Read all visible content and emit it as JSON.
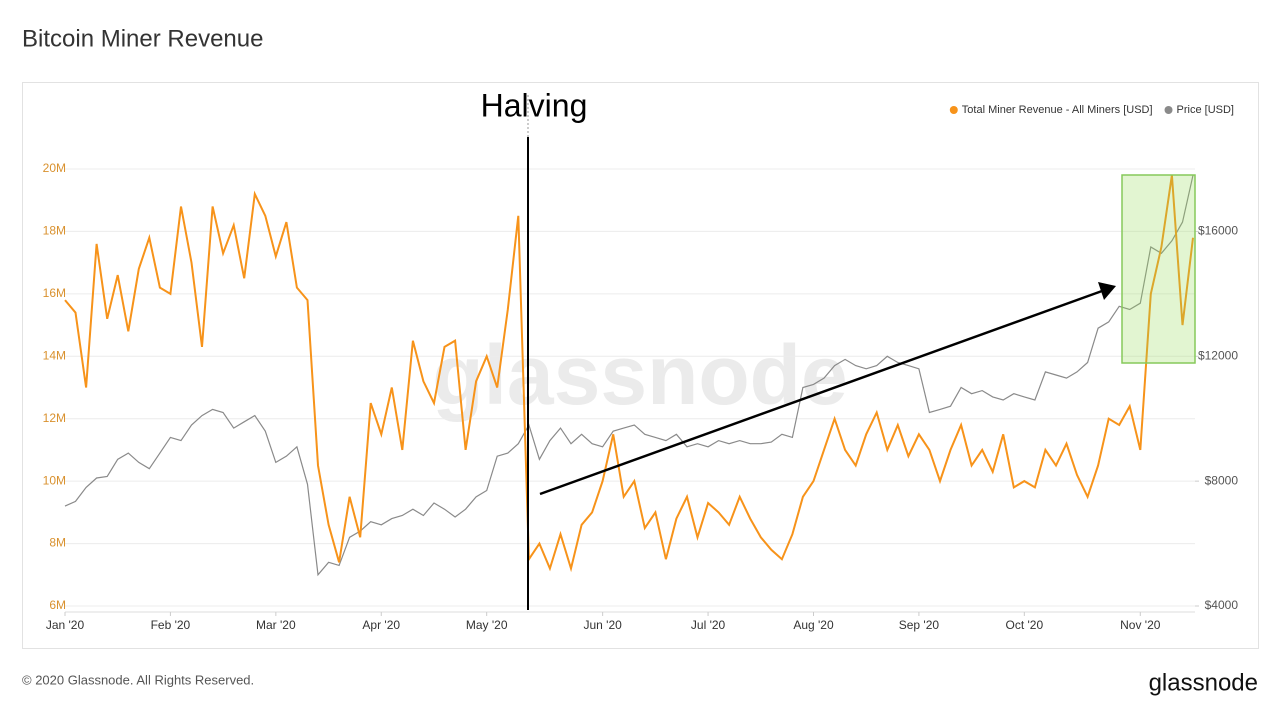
{
  "chart_data": {
    "type": "line",
    "title": "Bitcoin Miner Revenue",
    "annotation": "Halving",
    "watermark": "glassnode",
    "footer": "© 2020 Glassnode. All Rights Reserved.",
    "logo": "glassnode",
    "categories": [
      "Jan '20",
      null,
      null,
      null,
      null,
      null,
      null,
      null,
      null,
      null,
      "Feb '20",
      null,
      null,
      null,
      null,
      null,
      null,
      null,
      null,
      null,
      "Mar '20",
      null,
      null,
      null,
      null,
      null,
      null,
      null,
      null,
      null,
      "Apr '20",
      null,
      null,
      null,
      null,
      null,
      null,
      null,
      null,
      null,
      "May '20",
      null,
      null,
      null,
      null,
      null,
      null,
      null,
      null,
      null,
      null,
      "Jun '20",
      null,
      null,
      null,
      null,
      null,
      null,
      null,
      null,
      null,
      "Jul '20",
      null,
      null,
      null,
      null,
      null,
      null,
      null,
      null,
      null,
      "Aug '20",
      null,
      null,
      null,
      null,
      null,
      null,
      null,
      null,
      null,
      "Sep '20",
      null,
      null,
      null,
      null,
      null,
      null,
      null,
      null,
      null,
      "Oct '20",
      null,
      null,
      null,
      null,
      null,
      null,
      null,
      null,
      null,
      null,
      "Nov '20",
      null,
      null,
      null,
      null,
      null
    ],
    "series": [
      {
        "name": "Total Miner Revenue - All Miners [USD]",
        "color": "#f7931a",
        "values": [
          15.8,
          15.4,
          13.0,
          17.6,
          15.2,
          16.6,
          14.8,
          16.8,
          17.8,
          16.2,
          16.0,
          18.8,
          17.0,
          14.3,
          18.8,
          17.3,
          18.2,
          16.5,
          19.2,
          18.5,
          17.2,
          18.3,
          16.2,
          15.8,
          10.5,
          8.6,
          7.4,
          9.5,
          8.2,
          12.5,
          11.5,
          13.0,
          11.0,
          14.5,
          13.2,
          12.5,
          14.3,
          14.5,
          11.0,
          13.2,
          14.0,
          13.0,
          15.5,
          18.5,
          7.5,
          8.0,
          7.2,
          8.3,
          7.2,
          8.6,
          9.0,
          10.0,
          11.5,
          9.5,
          10.0,
          8.5,
          9.0,
          7.5,
          8.8,
          9.5,
          8.2,
          9.3,
          9.0,
          8.6,
          9.5,
          8.8,
          8.2,
          7.8,
          7.5,
          8.3,
          9.5,
          10.0,
          11.0,
          12.0,
          11.0,
          10.5,
          11.5,
          12.2,
          11.0,
          11.8,
          10.8,
          11.5,
          11.0,
          10.0,
          11.0,
          11.8,
          10.5,
          11.0,
          10.3,
          11.5,
          9.8,
          10.0,
          9.8,
          11.0,
          10.5,
          11.2,
          10.2,
          9.5,
          10.5,
          12.0,
          11.8,
          12.4,
          11.0,
          16.0,
          17.5,
          19.8,
          15.0,
          17.8
        ]
      },
      {
        "name": "Price [USD]",
        "color": "#8a8a8a",
        "axis": "y2",
        "values": [
          7200,
          7350,
          7800,
          8100,
          8150,
          8700,
          8900,
          8600,
          8400,
          8900,
          9400,
          9300,
          9800,
          10100,
          10300,
          10200,
          9700,
          9900,
          10100,
          9600,
          8600,
          8800,
          9100,
          7900,
          5000,
          5400,
          5300,
          6200,
          6400,
          6700,
          6600,
          6800,
          6900,
          7100,
          6900,
          7300,
          7100,
          6850,
          7100,
          7500,
          7700,
          8800,
          8900,
          9200,
          9800,
          8700,
          9300,
          9700,
          9200,
          9500,
          9200,
          9100,
          9600,
          9700,
          9800,
          9500,
          9400,
          9300,
          9500,
          9100,
          9200,
          9100,
          9300,
          9200,
          9300,
          9200,
          9200,
          9250,
          9500,
          9400,
          11000,
          11100,
          11300,
          11700,
          11900,
          11700,
          11600,
          11700,
          12000,
          11800,
          11700,
          11600,
          10200,
          10300,
          10400,
          11000,
          10800,
          10900,
          10700,
          10600,
          10800,
          10700,
          10600,
          11500,
          11400,
          11300,
          11500,
          11800,
          12900,
          13100,
          13600,
          13500,
          13700,
          15500,
          15300,
          15700,
          16300,
          17800
        ]
      }
    ],
    "ylim": [
      6,
      20
    ],
    "yticks": [
      {
        "value": 6,
        "label": "6M"
      },
      {
        "value": 8,
        "label": "8M"
      },
      {
        "value": 10,
        "label": "10M"
      },
      {
        "value": 12,
        "label": "12M"
      },
      {
        "value": 14,
        "label": "14M"
      },
      {
        "value": 16,
        "label": "16M"
      },
      {
        "value": 18,
        "label": "18M"
      },
      {
        "value": 20,
        "label": "20M"
      }
    ],
    "y2lim": [
      4000,
      18000
    ],
    "y2ticks": [
      {
        "value": 4000,
        "label": "$4000"
      },
      {
        "value": 8000,
        "label": "$8000"
      },
      {
        "value": 12000,
        "label": "$12000"
      },
      {
        "value": 16000,
        "label": "$16000"
      }
    ],
    "grid": true,
    "legend": "top-right"
  }
}
